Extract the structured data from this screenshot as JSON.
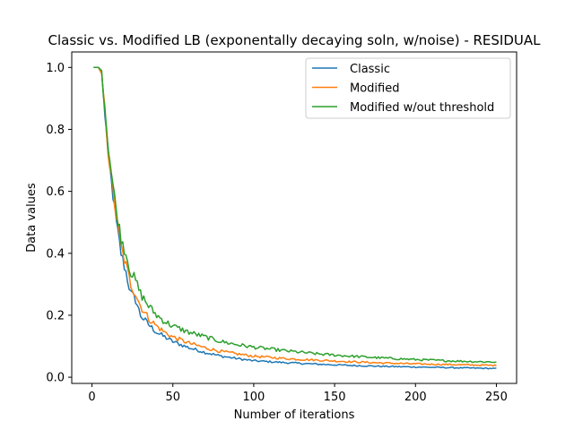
{
  "chart_data": {
    "type": "line",
    "title": "Classic vs. Modified LB (exponentally decaying soln, w/noise) - RESIDUAL",
    "xlabel": "Number of iterations",
    "ylabel": "Data values",
    "xlim": [
      -12.5,
      262.5
    ],
    "ylim": [
      -0.02,
      1.05
    ],
    "xticks": [
      0,
      50,
      100,
      150,
      200,
      250
    ],
    "yticks": [
      0.0,
      0.2,
      0.4,
      0.6,
      0.8,
      1.0
    ],
    "xtick_labels": [
      "0",
      "50",
      "100",
      "150",
      "200",
      "250"
    ],
    "ytick_labels": [
      "0.0",
      "0.2",
      "0.4",
      "0.6",
      "0.8",
      "1.0"
    ],
    "grid": false,
    "legend_position": "top-right",
    "x_range": [
      1,
      250
    ],
    "series": [
      {
        "name": "Classic",
        "color": "#1f77b4",
        "points": [
          [
            1,
            1.0
          ],
          [
            4,
            1.0
          ],
          [
            6,
            0.98
          ],
          [
            8,
            0.85
          ],
          [
            10,
            0.72
          ],
          [
            12,
            0.63
          ],
          [
            15,
            0.5
          ],
          [
            18,
            0.4
          ],
          [
            21,
            0.34
          ],
          [
            24,
            0.27
          ],
          [
            27,
            0.25
          ],
          [
            30,
            0.2
          ],
          [
            35,
            0.17
          ],
          [
            40,
            0.145
          ],
          [
            45,
            0.13
          ],
          [
            50,
            0.115
          ],
          [
            60,
            0.095
          ],
          [
            70,
            0.08
          ],
          [
            80,
            0.068
          ],
          [
            90,
            0.06
          ],
          [
            100,
            0.053
          ],
          [
            120,
            0.047
          ],
          [
            140,
            0.042
          ],
          [
            160,
            0.038
          ],
          [
            180,
            0.035
          ],
          [
            200,
            0.033
          ],
          [
            220,
            0.031
          ],
          [
            240,
            0.029
          ],
          [
            250,
            0.028
          ]
        ]
      },
      {
        "name": "Modified",
        "color": "#ff7f0e",
        "points": [
          [
            1,
            1.0
          ],
          [
            4,
            1.0
          ],
          [
            6,
            0.98
          ],
          [
            8,
            0.86
          ],
          [
            10,
            0.73
          ],
          [
            12,
            0.64
          ],
          [
            15,
            0.52
          ],
          [
            18,
            0.42
          ],
          [
            21,
            0.36
          ],
          [
            24,
            0.3
          ],
          [
            27,
            0.27
          ],
          [
            30,
            0.23
          ],
          [
            35,
            0.19
          ],
          [
            40,
            0.165
          ],
          [
            45,
            0.145
          ],
          [
            50,
            0.13
          ],
          [
            60,
            0.11
          ],
          [
            70,
            0.095
          ],
          [
            80,
            0.083
          ],
          [
            90,
            0.075
          ],
          [
            100,
            0.068
          ],
          [
            120,
            0.06
          ],
          [
            140,
            0.055
          ],
          [
            160,
            0.05
          ],
          [
            180,
            0.046
          ],
          [
            200,
            0.043
          ],
          [
            220,
            0.041
          ],
          [
            240,
            0.039
          ],
          [
            250,
            0.038
          ]
        ]
      },
      {
        "name": "Modified w/out threshold",
        "color": "#2ca02c",
        "points": [
          [
            1,
            1.0
          ],
          [
            4,
            1.0
          ],
          [
            6,
            0.99
          ],
          [
            8,
            0.87
          ],
          [
            10,
            0.75
          ],
          [
            12,
            0.66
          ],
          [
            15,
            0.54
          ],
          [
            18,
            0.45
          ],
          [
            21,
            0.4
          ],
          [
            24,
            0.34
          ],
          [
            27,
            0.31
          ],
          [
            30,
            0.27
          ],
          [
            35,
            0.23
          ],
          [
            40,
            0.2
          ],
          [
            45,
            0.18
          ],
          [
            50,
            0.165
          ],
          [
            60,
            0.145
          ],
          [
            70,
            0.13
          ],
          [
            80,
            0.115
          ],
          [
            90,
            0.105
          ],
          [
            100,
            0.097
          ],
          [
            120,
            0.085
          ],
          [
            140,
            0.075
          ],
          [
            160,
            0.068
          ],
          [
            180,
            0.062
          ],
          [
            200,
            0.057
          ],
          [
            220,
            0.053
          ],
          [
            240,
            0.05
          ],
          [
            250,
            0.049
          ]
        ]
      }
    ]
  }
}
